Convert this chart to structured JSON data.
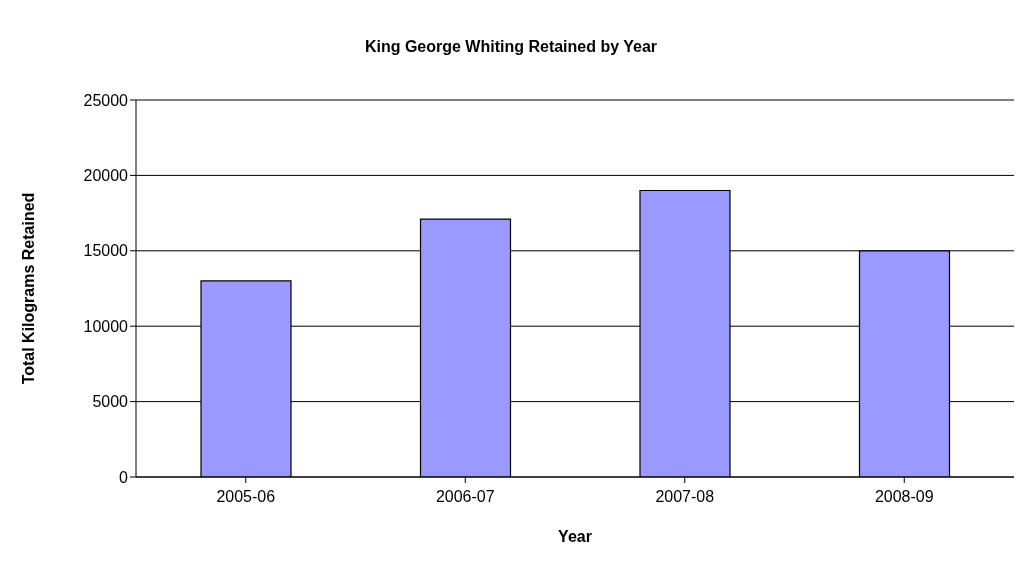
{
  "chart_data": {
    "type": "bar",
    "title": "King George Whiting Retained by Year",
    "xlabel": "Year",
    "ylabel": "Total Kilograms Retained",
    "categories": [
      "2005-06",
      "2006-07",
      "2007-08",
      "2008-09"
    ],
    "values": [
      13000,
      17100,
      19000,
      15000
    ],
    "color": "#9999ff",
    "ylim": [
      0,
      25000
    ],
    "yticks": [
      0,
      5000,
      10000,
      15000,
      20000,
      25000
    ],
    "grid": "y"
  }
}
